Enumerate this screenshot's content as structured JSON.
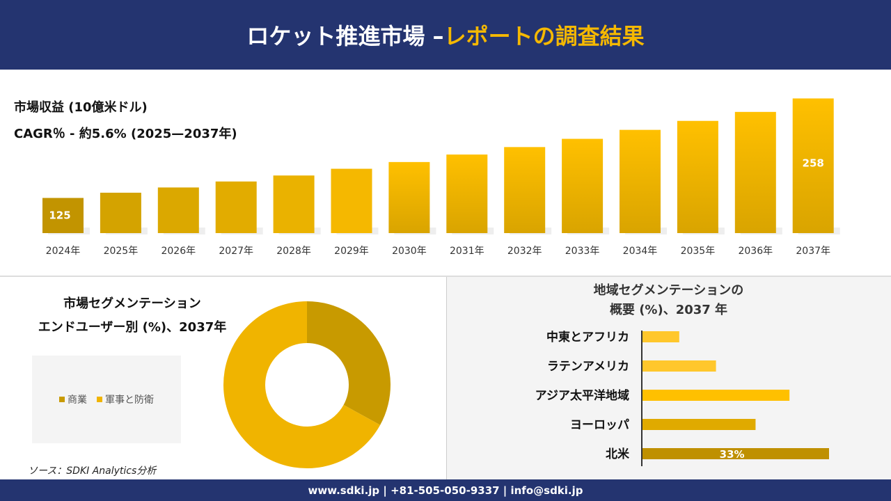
{
  "header": {
    "title_main": "ロケット推進市場 –",
    "title_highlight": "レポートの調査結果"
  },
  "colors": {
    "navy": "#243470",
    "accent": "#f5b800",
    "dark_gold": "#c89a00",
    "gold": "#f0b400"
  },
  "chart_data": [
    {
      "type": "bar",
      "title": "市場収益 (10億米ドル)",
      "subtitle": "CAGR％ - 約5.6% (2025—2037年)",
      "categories": [
        "2024年",
        "2025年",
        "2026年",
        "2027年",
        "2028年",
        "2029年",
        "2030年",
        "2031年",
        "2032年",
        "2033年",
        "2034年",
        "2035年",
        "2036年",
        "2037年"
      ],
      "values": [
        125,
        132,
        139,
        147,
        155,
        164,
        173,
        183,
        193,
        204,
        216,
        228,
        240,
        258
      ],
      "data_labels": {
        "0": "125",
        "13": "258"
      },
      "ylim": [
        78,
        260
      ]
    },
    {
      "type": "pie",
      "title_line1": "市場セグメンテーション",
      "title_line2": "エンドユーザー別 (%)、2037年",
      "donut": true,
      "labels": [
        "商業",
        "軍事と防衛"
      ],
      "values": [
        33,
        67
      ],
      "colors": [
        "#c89a00",
        "#f0b400"
      ]
    },
    {
      "type": "bar",
      "orientation": "horizontal",
      "title_line1": "地域セグメンテーションの",
      "title_line2": "概要 (%)、2037 年",
      "categories": [
        "中東とアフリカ",
        "ラテンアメリカ",
        "アジア太平洋地域",
        "ヨーロッパ",
        "北米"
      ],
      "values": [
        6.5,
        13,
        26,
        20,
        33
      ],
      "data_labels": {
        "4": "33%"
      },
      "colors": [
        "#ffc72c",
        "#ffc72c",
        "#ffc000",
        "#e0aa00",
        "#bf9000"
      ]
    }
  ],
  "source": "ソース：SDKI Analytics分析",
  "footer": "www.sdki.jp | +81-505-050-9337 | info@sdki.jp"
}
